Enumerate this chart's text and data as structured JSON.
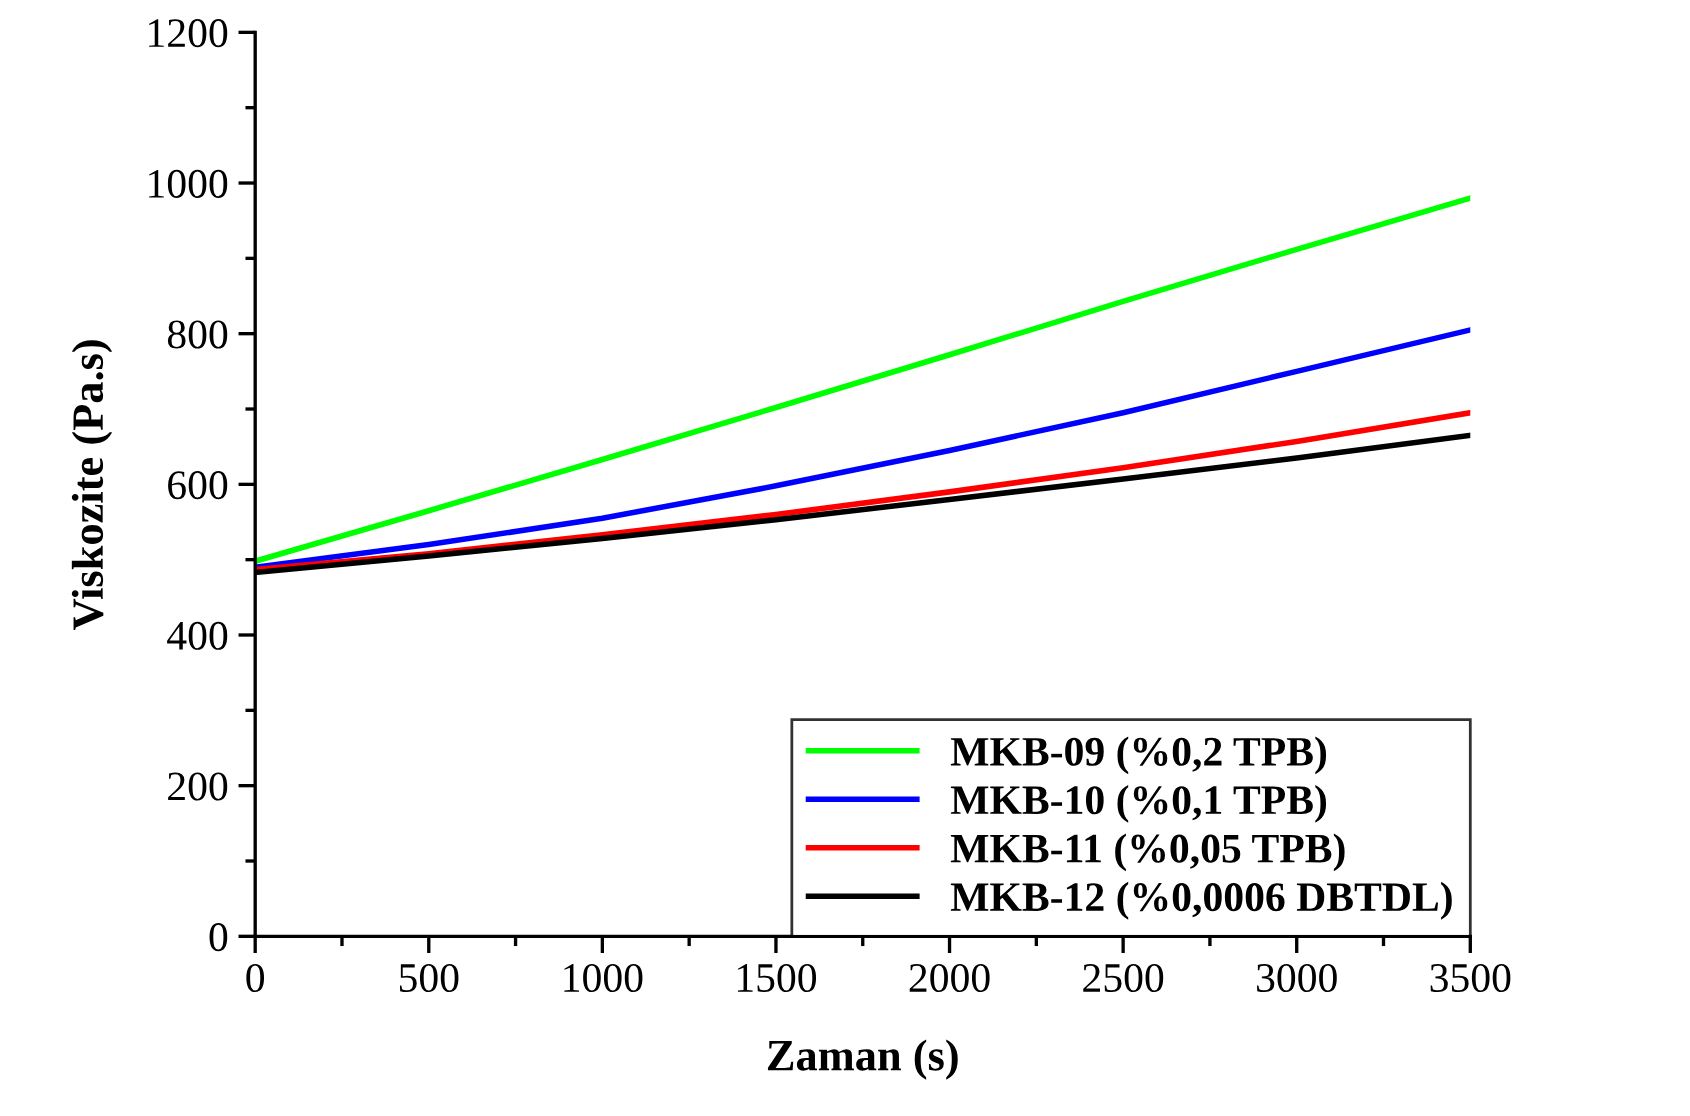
{
  "chart_data": {
    "type": "line",
    "xlabel": "Zaman (s)",
    "ylabel": "Viskozite (Pa.s)",
    "x": [
      0,
      500,
      1000,
      1500,
      2000,
      2500,
      3000,
      3500
    ],
    "series": [
      {
        "name": "MKB-09 (%0,2 TPB)",
        "color": "#00ff00",
        "values": [
          498,
          565,
          633,
          702,
          772,
          843,
          912,
          980
        ]
      },
      {
        "name": "MKB-10 (%0,1 TPB)",
        "color": "#0000ff",
        "values": [
          490,
          520,
          555,
          598,
          645,
          695,
          750,
          805
        ]
      },
      {
        "name": "MKB-11 (%0,05 TPB)",
        "color": "#ff0000",
        "values": [
          487,
          508,
          533,
          560,
          590,
          622,
          657,
          695
        ]
      },
      {
        "name": "MKB-12 (%0,0006 DBTDL)",
        "color": "#000000",
        "values": [
          483,
          505,
          528,
          553,
          580,
          607,
          635,
          665
        ]
      }
    ],
    "xlim": [
      0,
      3500
    ],
    "xticks": [
      0,
      500,
      1000,
      1500,
      2000,
      2500,
      3000,
      3500
    ],
    "ylim": [
      0,
      1200
    ],
    "yticks": [
      0,
      200,
      400,
      600,
      800,
      1000,
      1200
    ],
    "grid": false,
    "legend": "bottom right",
    "marker": "none",
    "line_style": "solid"
  }
}
